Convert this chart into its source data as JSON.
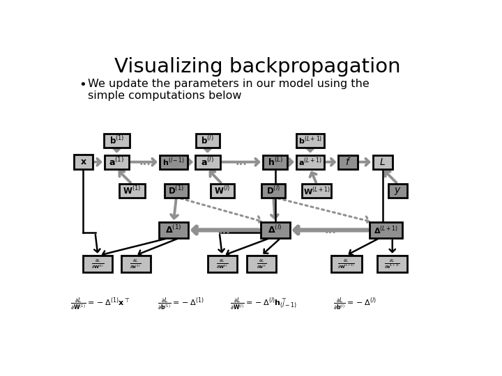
{
  "title": "Visualizing backpropagation",
  "subtitle": "We update the parameters in our model using the\nsimple computations below",
  "bg_color": "#ffffff",
  "box_fill_light": "#c0c0c0",
  "box_fill_dark": "#909090",
  "box_edge": "#000000",
  "arrow_gray": "#909090",
  "arrow_black": "#000000",
  "formula1": "$\\frac{\\partial L}{\\partial \\mathbf{W}^{(1)}} = -\\Delta^{(1)}\\mathbf{x}^{\\top}$",
  "formula2": "$\\frac{\\partial L}{\\partial \\mathbf{b}^{(1)}} = -\\Delta^{(1)}$",
  "formula3": "$\\frac{\\partial L}{\\partial \\mathbf{W}^{(l)}} = -\\Delta^{(l)}\\mathbf{h}^{\\top}_{(l-1)}$",
  "formula4": "$\\frac{\\partial L}{\\partial \\mathbf{b}^{(l)}} = -\\Delta^{(l)}$"
}
